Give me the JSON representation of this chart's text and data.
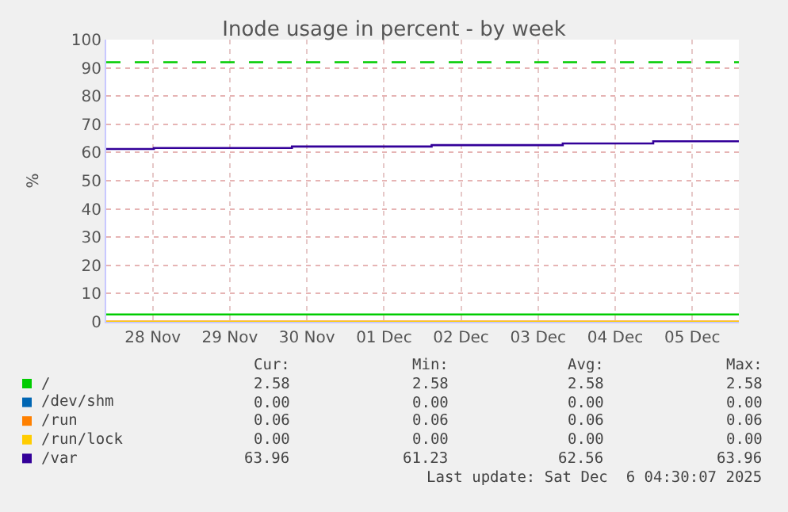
{
  "chart_data": {
    "type": "step",
    "title": "Inode usage in percent - by week",
    "ylabel": "%",
    "xlim": [
      "2025-11-27T21:30",
      "2025-12-06T02:30"
    ],
    "xticks": [
      {
        "value": "2025-11-28T12:00",
        "label": "28 Nov"
      },
      {
        "value": "2025-11-29T12:00",
        "label": "29 Nov"
      },
      {
        "value": "2025-11-30T12:00",
        "label": "30 Nov"
      },
      {
        "value": "2025-12-01T12:00",
        "label": "01 Dec"
      },
      {
        "value": "2025-12-02T12:00",
        "label": "02 Dec"
      },
      {
        "value": "2025-12-03T12:00",
        "label": "03 Dec"
      },
      {
        "value": "2025-12-04T12:00",
        "label": "04 Dec"
      },
      {
        "value": "2025-12-05T12:00",
        "label": "05 Dec"
      }
    ],
    "ylim": [
      0,
      100
    ],
    "yticks": [
      0,
      10,
      20,
      30,
      40,
      50,
      60,
      70,
      80,
      90,
      100
    ],
    "grid": true,
    "legend": "bottom",
    "series": [
      {
        "name": "/",
        "color": "#00cc00",
        "x": [
          "2025-11-27T21:30",
          "2025-12-06T02:30"
        ],
        "values": [
          2.58,
          2.58
        ]
      },
      {
        "name": "/dev/shm",
        "color": "#0066b3"
      },
      {
        "name": "/run",
        "color": "#ff8000",
        "x": [
          "2025-11-27T21:30",
          "2025-12-06T02:30"
        ],
        "values": [
          0.06,
          0.06
        ]
      },
      {
        "name": "/run/lock",
        "color": "#ffcc00",
        "x": [
          "2025-11-27T21:30",
          "2025-12-06T02:30"
        ],
        "values": [
          0,
          0
        ]
      },
      {
        "name": "/var",
        "color": "#330099",
        "x": [
          "2025-11-27T21:30",
          "2025-11-28T12:20",
          "2025-11-30T07:20",
          "2025-12-02T02:50",
          "2025-12-03T19:40",
          "2025-12-04T23:50",
          "2025-12-06T02:30"
        ],
        "values": [
          61.23,
          61.6,
          62.1,
          62.6,
          63.2,
          63.96,
          63.96
        ]
      }
    ],
    "ref_lines": [
      {
        "axis": "y",
        "value": 92,
        "color": "#00cc00",
        "line_style": "dashed"
      }
    ],
    "annotations": [
      "Cur:",
      "Min:",
      "Avg:",
      "Max:",
      "2.58",
      "2.58",
      "2.58",
      "2.58",
      "0.00",
      "0.00",
      "0.00",
      "0.00",
      "0.06",
      "0.06",
      "0.06",
      "0.06",
      "0.00",
      "0.00",
      "0.00",
      "0.00",
      "63.96",
      "61.23",
      "62.56",
      "63.96",
      "Last update: Sat Dec  6 04:30:07 2025"
    ]
  }
}
